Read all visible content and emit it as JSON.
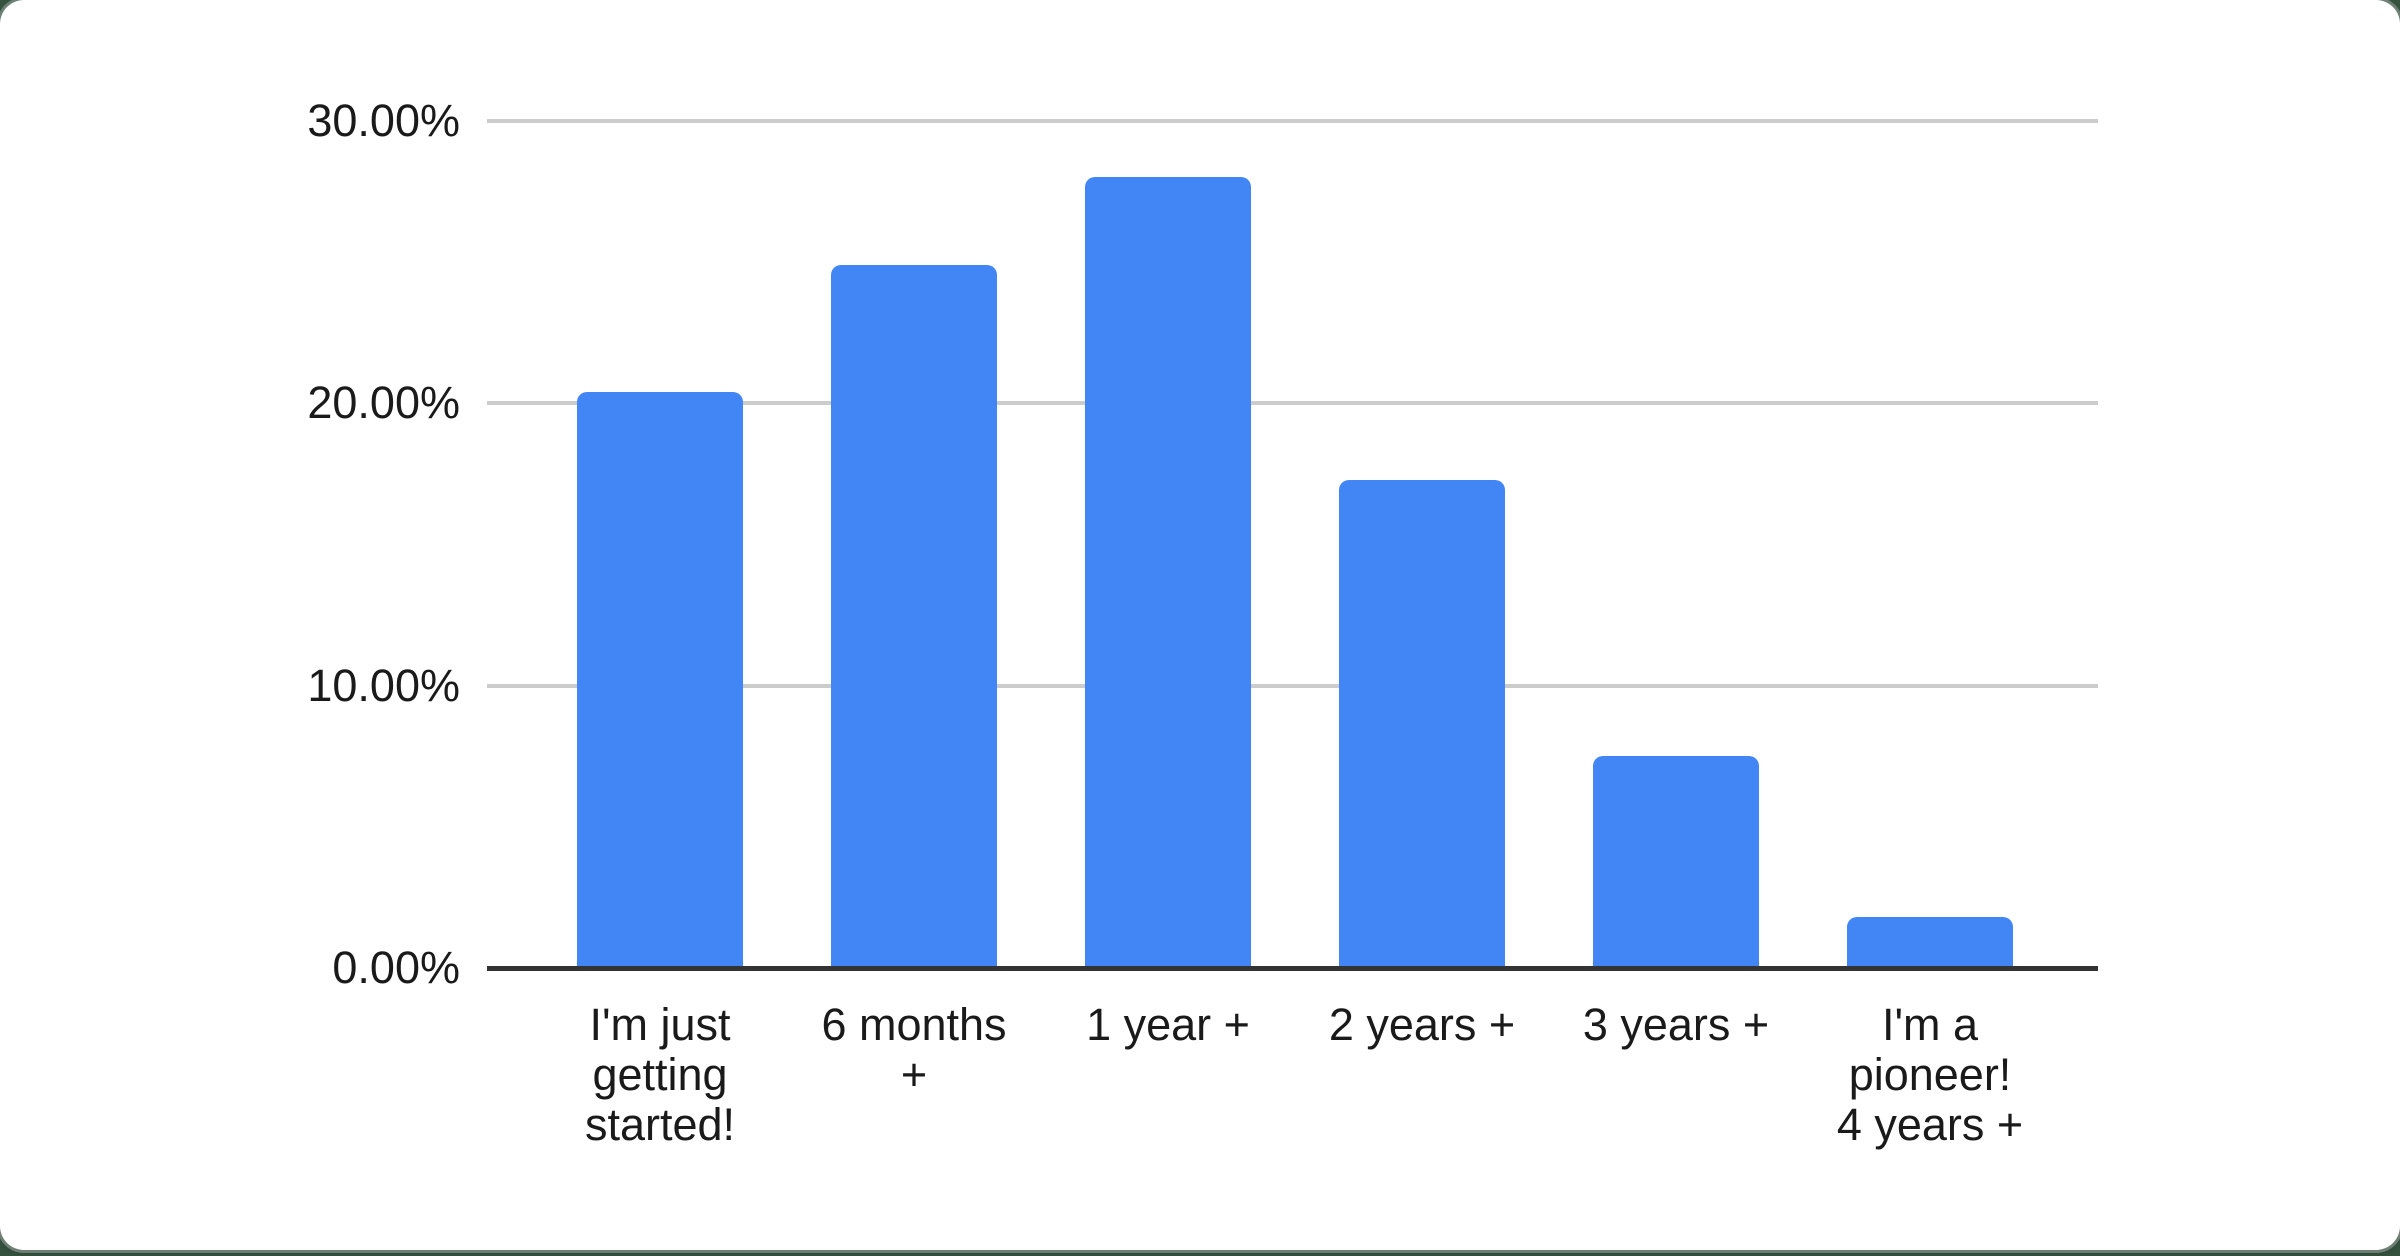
{
  "chart_data": {
    "type": "bar",
    "title": "",
    "xlabel": "",
    "ylabel": "",
    "categories": [
      "I'm just getting started!",
      "6 months +",
      "1 year +",
      "2 years +",
      "3 years +",
      "I'm a pioneer! 4 years +"
    ],
    "category_lines": [
      [
        "I'm just",
        "getting",
        "started!"
      ],
      [
        "6 months",
        "+"
      ],
      [
        "1 year +"
      ],
      [
        "2 years +"
      ],
      [
        "3 years +"
      ],
      [
        "I'm a",
        "pioneer!",
        "4 years +"
      ]
    ],
    "values": [
      20.4,
      24.9,
      28.0,
      17.3,
      7.5,
      1.8
    ],
    "value_unit": "percent",
    "ylim": [
      0,
      30
    ],
    "yticks": [
      0,
      10,
      20,
      30
    ],
    "ytick_labels": [
      "0.00%",
      "10.00%",
      "20.00%",
      "30.00%"
    ],
    "grid": true,
    "legend": "none",
    "colors": {
      "bar": "#4285f4",
      "gridline": "#cccccc",
      "axis_line": "#333333",
      "text": "#1a1a1a",
      "card_background": "#ffffff",
      "page_background": "#35523f"
    }
  }
}
